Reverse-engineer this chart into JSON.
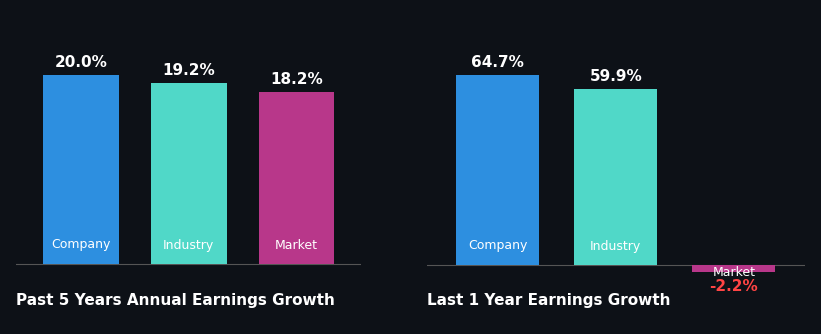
{
  "background_color": "#0d1117",
  "left_chart": {
    "title": "Past 5 Years Annual Earnings Growth",
    "categories": [
      "Company",
      "Industry",
      "Market"
    ],
    "values": [
      20.0,
      19.2,
      18.2
    ],
    "colors": [
      "#2d8fe0",
      "#50d8c8",
      "#b8378a"
    ],
    "bar_labels": [
      "20.0%",
      "19.2%",
      "18.2%"
    ]
  },
  "right_chart": {
    "title": "Last 1 Year Earnings Growth",
    "categories": [
      "Company",
      "Industry",
      "Market"
    ],
    "values": [
      64.7,
      59.9,
      -2.2
    ],
    "colors": [
      "#2d8fe0",
      "#50d8c8",
      "#b8378a"
    ],
    "bar_labels": [
      "64.7%",
      "59.9%",
      "-2.2%"
    ]
  },
  "label_color_positive": "#ffffff",
  "label_color_negative": "#ff4444",
  "bar_label_inside_color": "#ffffff",
  "title_color": "#ffffff",
  "title_fontsize": 11,
  "value_fontsize": 11,
  "category_fontsize": 9,
  "bar_width": 0.7
}
